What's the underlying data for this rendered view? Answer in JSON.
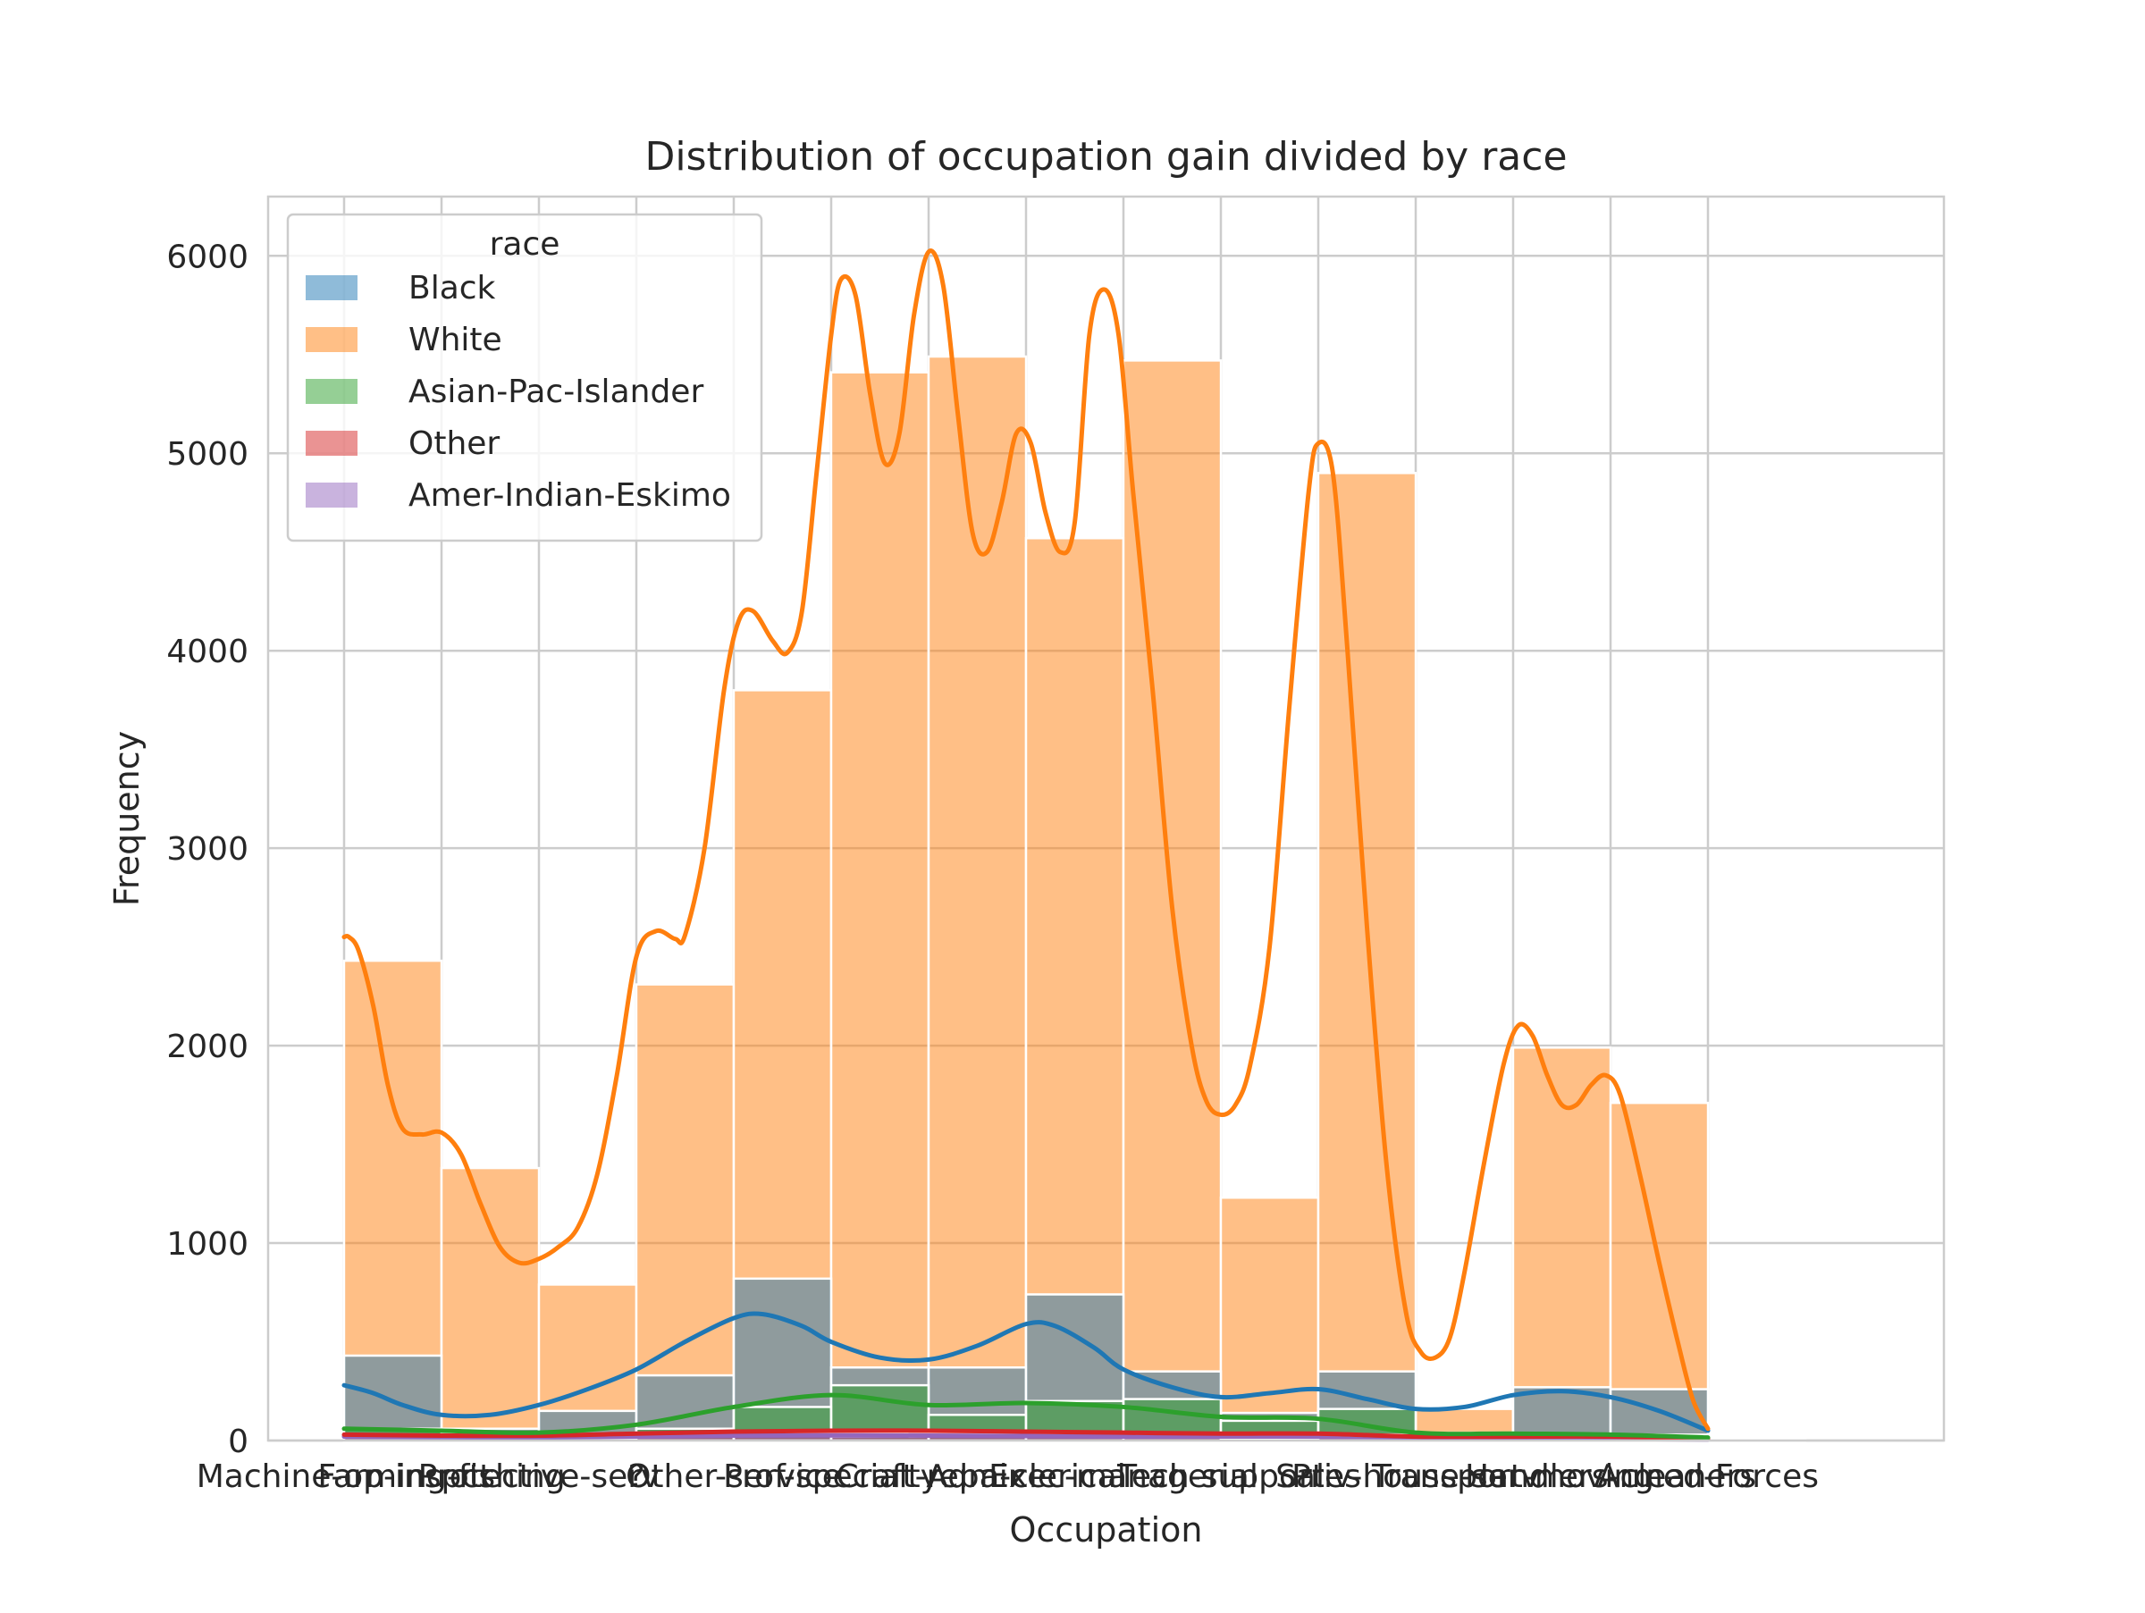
{
  "chart_data": {
    "type": "bar",
    "stacked": "layer",
    "title": "Distribution of occupation gain divided by race",
    "xlabel": "Occupation",
    "ylabel": "Frequency",
    "ylim": [
      0,
      6300
    ],
    "yticks": [
      0,
      1000,
      2000,
      3000,
      4000,
      5000,
      6000
    ],
    "grid": true,
    "legend": {
      "title": "race",
      "placement": "top-left"
    },
    "categories": [
      "Machine-op-inspct",
      "Farming-fishing",
      "Protective-serv",
      "?",
      "Other-service",
      "Prof-specialty",
      "Craft-repair",
      "Adm-clerical",
      "Exec-managerial",
      "Tech-support",
      "Sales",
      "Priv-house-serv",
      "Transport-moving",
      "Handlers-cleaners",
      "Armed-Forces"
    ],
    "series": [
      {
        "name": "Black",
        "color": "#1f77b4",
        "values": [
          430,
          60,
          150,
          330,
          820,
          370,
          370,
          740,
          350,
          140,
          350,
          40,
          270,
          260,
          1
        ]
      },
      {
        "name": "White",
        "color": "#ff7f0e",
        "values": [
          2430,
          1380,
          790,
          2310,
          3800,
          5410,
          5490,
          4570,
          5470,
          1230,
          4900,
          160,
          1990,
          1710,
          10
        ]
      },
      {
        "name": "Asian-Pac-Islander",
        "color": "#2ca02c",
        "values": [
          60,
          40,
          20,
          60,
          170,
          280,
          130,
          200,
          210,
          100,
          160,
          20,
          30,
          30,
          0
        ]
      },
      {
        "name": "Other",
        "color": "#d62728",
        "values": [
          30,
          20,
          10,
          20,
          40,
          40,
          40,
          40,
          30,
          20,
          30,
          5,
          20,
          20,
          0
        ]
      },
      {
        "name": "Amer-Indian-Eskimo",
        "color": "#9467bd",
        "values": [
          20,
          10,
          10,
          20,
          30,
          20,
          20,
          30,
          20,
          10,
          20,
          5,
          10,
          10,
          0
        ]
      }
    ],
    "kde": [
      {
        "name": "Black",
        "color": "#1f77b4",
        "points": [
          [
            0,
            280
          ],
          [
            0.3,
            240
          ],
          [
            0.6,
            180
          ],
          [
            1,
            130
          ],
          [
            1.5,
            130
          ],
          [
            2,
            180
          ],
          [
            2.5,
            260
          ],
          [
            3,
            360
          ],
          [
            3.5,
            500
          ],
          [
            4,
            620
          ],
          [
            4.3,
            640
          ],
          [
            4.7,
            580
          ],
          [
            5,
            500
          ],
          [
            5.5,
            420
          ],
          [
            6,
            410
          ],
          [
            6.5,
            480
          ],
          [
            7,
            590
          ],
          [
            7.3,
            580
          ],
          [
            7.7,
            470
          ],
          [
            8,
            360
          ],
          [
            8.5,
            270
          ],
          [
            9,
            220
          ],
          [
            9.5,
            240
          ],
          [
            10,
            260
          ],
          [
            10.5,
            210
          ],
          [
            11,
            160
          ],
          [
            11.5,
            170
          ],
          [
            12,
            230
          ],
          [
            12.5,
            250
          ],
          [
            13,
            220
          ],
          [
            13.5,
            150
          ],
          [
            14,
            50
          ]
        ]
      },
      {
        "name": "White",
        "color": "#ff7f0e",
        "points": [
          [
            0,
            2550
          ],
          [
            0.05,
            2550
          ],
          [
            0.15,
            2480
          ],
          [
            0.3,
            2200
          ],
          [
            0.45,
            1800
          ],
          [
            0.6,
            1580
          ],
          [
            0.8,
            1550
          ],
          [
            1,
            1560
          ],
          [
            1.2,
            1450
          ],
          [
            1.4,
            1200
          ],
          [
            1.6,
            980
          ],
          [
            1.8,
            900
          ],
          [
            2,
            920
          ],
          [
            2.2,
            980
          ],
          [
            2.4,
            1080
          ],
          [
            2.6,
            1350
          ],
          [
            2.8,
            1850
          ],
          [
            3,
            2450
          ],
          [
            3.2,
            2580
          ],
          [
            3.4,
            2540
          ],
          [
            3.5,
            2560
          ],
          [
            3.7,
            3000
          ],
          [
            3.9,
            3800
          ],
          [
            4.05,
            4150
          ],
          [
            4.2,
            4200
          ],
          [
            4.4,
            4050
          ],
          [
            4.55,
            3990
          ],
          [
            4.7,
            4200
          ],
          [
            4.85,
            4900
          ],
          [
            5,
            5600
          ],
          [
            5.1,
            5880
          ],
          [
            5.25,
            5800
          ],
          [
            5.4,
            5300
          ],
          [
            5.55,
            4950
          ],
          [
            5.7,
            5100
          ],
          [
            5.85,
            5700
          ],
          [
            6,
            6020
          ],
          [
            6.15,
            5850
          ],
          [
            6.3,
            5200
          ],
          [
            6.45,
            4600
          ],
          [
            6.6,
            4500
          ],
          [
            6.75,
            4750
          ],
          [
            6.9,
            5100
          ],
          [
            7.05,
            5050
          ],
          [
            7.2,
            4700
          ],
          [
            7.35,
            4500
          ],
          [
            7.5,
            4650
          ],
          [
            7.65,
            5600
          ],
          [
            7.8,
            5830
          ],
          [
            7.95,
            5600
          ],
          [
            8.1,
            4800
          ],
          [
            8.3,
            3800
          ],
          [
            8.5,
            2700
          ],
          [
            8.7,
            2000
          ],
          [
            8.85,
            1720
          ],
          [
            9,
            1650
          ],
          [
            9.15,
            1700
          ],
          [
            9.3,
            1900
          ],
          [
            9.5,
            2500
          ],
          [
            9.7,
            3700
          ],
          [
            9.9,
            4800
          ],
          [
            10,
            5050
          ],
          [
            10.15,
            4900
          ],
          [
            10.3,
            4000
          ],
          [
            10.5,
            2600
          ],
          [
            10.7,
            1400
          ],
          [
            10.9,
            650
          ],
          [
            11.05,
            450
          ],
          [
            11.2,
            420
          ],
          [
            11.35,
            520
          ],
          [
            11.5,
            850
          ],
          [
            11.7,
            1400
          ],
          [
            11.9,
            1900
          ],
          [
            12.05,
            2100
          ],
          [
            12.2,
            2050
          ],
          [
            12.35,
            1850
          ],
          [
            12.5,
            1700
          ],
          [
            12.65,
            1700
          ],
          [
            12.8,
            1800
          ],
          [
            12.95,
            1850
          ],
          [
            13.1,
            1750
          ],
          [
            13.3,
            1350
          ],
          [
            13.5,
            900
          ],
          [
            13.7,
            480
          ],
          [
            13.85,
            200
          ],
          [
            14,
            60
          ]
        ]
      },
      {
        "name": "Asian-Pac-Islander",
        "color": "#2ca02c",
        "points": [
          [
            0,
            60
          ],
          [
            1,
            50
          ],
          [
            2,
            40
          ],
          [
            3,
            80
          ],
          [
            4,
            170
          ],
          [
            5,
            230
          ],
          [
            6,
            180
          ],
          [
            7,
            190
          ],
          [
            8,
            170
          ],
          [
            9,
            120
          ],
          [
            10,
            110
          ],
          [
            11,
            40
          ],
          [
            12,
            35
          ],
          [
            13,
            30
          ],
          [
            14,
            15
          ]
        ]
      },
      {
        "name": "Other",
        "color": "#d62728",
        "points": [
          [
            0,
            30
          ],
          [
            1,
            25
          ],
          [
            2,
            25
          ],
          [
            3,
            35
          ],
          [
            4,
            45
          ],
          [
            5,
            50
          ],
          [
            6,
            50
          ],
          [
            7,
            45
          ],
          [
            8,
            40
          ],
          [
            9,
            35
          ],
          [
            10,
            35
          ],
          [
            11,
            20
          ],
          [
            12,
            20
          ],
          [
            13,
            20
          ],
          [
            14,
            10
          ]
        ]
      },
      {
        "name": "Amer-Indian-Eskimo",
        "color": "#9467bd",
        "points": [
          [
            0,
            20
          ],
          [
            2,
            15
          ],
          [
            4,
            25
          ],
          [
            6,
            25
          ],
          [
            8,
            20
          ],
          [
            10,
            20
          ],
          [
            12,
            12
          ],
          [
            14,
            5
          ]
        ]
      }
    ]
  }
}
